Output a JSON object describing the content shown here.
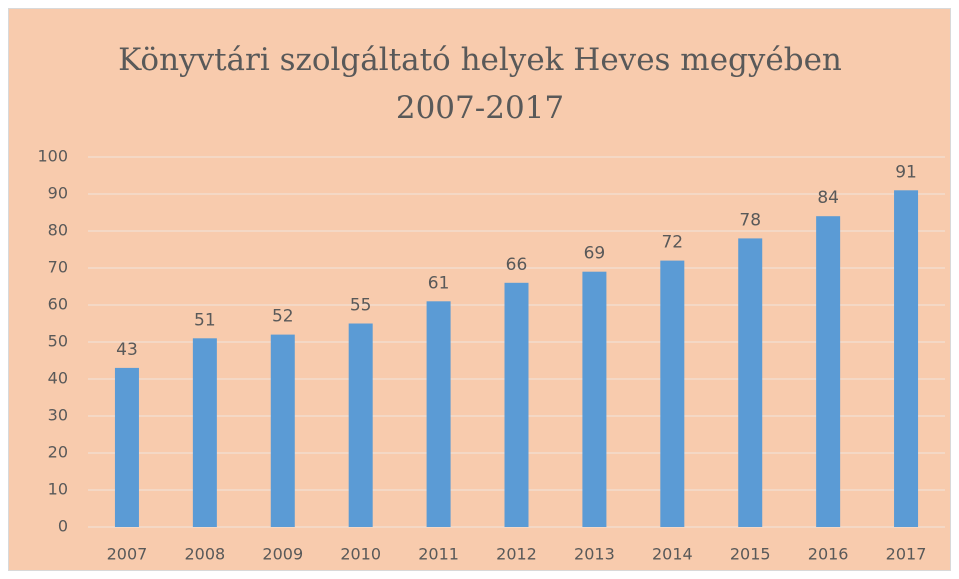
{
  "chart_data": {
    "type": "bar",
    "title": "Könyvtári szolgáltató helyek Heves megyében 2007-2017",
    "categories": [
      "2007",
      "2008",
      "2009",
      "2010",
      "2011",
      "2012",
      "2013",
      "2014",
      "2015",
      "2016",
      "2017"
    ],
    "values": [
      43,
      51,
      52,
      55,
      61,
      66,
      69,
      72,
      78,
      84,
      91
    ],
    "color": "#5b9bd5",
    "ylim": [
      0,
      100
    ],
    "yticks": [
      0,
      10,
      20,
      30,
      40,
      50,
      60,
      70,
      80,
      90,
      100
    ],
    "grid": true
  }
}
